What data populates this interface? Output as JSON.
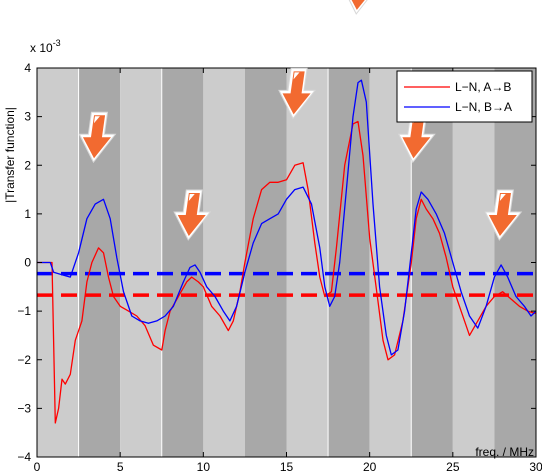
{
  "chart_data": {
    "type": "line",
    "title": "",
    "xlabel": "freq. / MHz",
    "ylabel": "|Transfer function|",
    "y_exponent_label": "x 10",
    "y_exponent_sup": "-3",
    "xlim": [
      0,
      30
    ],
    "ylim": [
      -4,
      4
    ],
    "xticks": [
      0,
      5,
      10,
      15,
      20,
      25,
      30
    ],
    "yticks": [
      -4,
      -3,
      -2,
      -1,
      0,
      1,
      2,
      3,
      4
    ],
    "legend_position": "top-right",
    "grid": false,
    "background_bands": [
      {
        "x0": 0,
        "x1": 2.5,
        "shade": "light"
      },
      {
        "x0": 2.5,
        "x1": 5,
        "shade": "dark"
      },
      {
        "x0": 5,
        "x1": 7.5,
        "shade": "light"
      },
      {
        "x0": 7.5,
        "x1": 10,
        "shade": "dark"
      },
      {
        "x0": 10,
        "x1": 12.5,
        "shade": "light"
      },
      {
        "x0": 12.5,
        "x1": 15,
        "shade": "dark"
      },
      {
        "x0": 15,
        "x1": 17.5,
        "shade": "light"
      },
      {
        "x0": 17.5,
        "x1": 20,
        "shade": "dark"
      },
      {
        "x0": 20,
        "x1": 22.5,
        "shade": "light"
      },
      {
        "x0": 22.5,
        "x1": 25,
        "shade": "dark"
      },
      {
        "x0": 25,
        "x1": 27.5,
        "shade": "light"
      },
      {
        "x0": 27.5,
        "x1": 30,
        "shade": "dark"
      }
    ],
    "band_separators": [
      2.5,
      7.5,
      17.5,
      22.5
    ],
    "colors": {
      "light_band": "#cccccc",
      "dark_band": "#a8a8a8",
      "separator": "#ffffff",
      "arrow_fill": "#f26a30",
      "arrow_highlight": "#ffffff"
    },
    "series": [
      {
        "name": "L−N, A→B",
        "color": "#ff0000",
        "points": [
          [
            0,
            0
          ],
          [
            0.9,
            0
          ],
          [
            1.0,
            -1.6
          ],
          [
            1.1,
            -3.3
          ],
          [
            1.3,
            -3.0
          ],
          [
            1.5,
            -2.4
          ],
          [
            1.7,
            -2.5
          ],
          [
            2.0,
            -2.3
          ],
          [
            2.3,
            -1.6
          ],
          [
            2.7,
            -1.2
          ],
          [
            3.0,
            -0.4
          ],
          [
            3.3,
            0.0
          ],
          [
            3.7,
            0.3
          ],
          [
            4.0,
            0.2
          ],
          [
            4.3,
            -0.3
          ],
          [
            4.6,
            -0.7
          ],
          [
            5.0,
            -0.9
          ],
          [
            5.5,
            -1.0
          ],
          [
            6.0,
            -1.1
          ],
          [
            6.5,
            -1.3
          ],
          [
            7.0,
            -1.7
          ],
          [
            7.5,
            -1.8
          ],
          [
            7.7,
            -1.4
          ],
          [
            8.0,
            -1.0
          ],
          [
            8.5,
            -0.7
          ],
          [
            9.0,
            -0.4
          ],
          [
            9.3,
            -0.3
          ],
          [
            9.7,
            -0.4
          ],
          [
            10.0,
            -0.5
          ],
          [
            10.5,
            -0.9
          ],
          [
            11.0,
            -1.1
          ],
          [
            11.5,
            -1.4
          ],
          [
            11.8,
            -1.2
          ],
          [
            12.2,
            -0.6
          ],
          [
            12.5,
            0.0
          ],
          [
            13.0,
            0.9
          ],
          [
            13.5,
            1.5
          ],
          [
            14.0,
            1.65
          ],
          [
            14.5,
            1.65
          ],
          [
            15.0,
            1.7
          ],
          [
            15.5,
            2.0
          ],
          [
            16.0,
            2.05
          ],
          [
            16.3,
            1.5
          ],
          [
            16.7,
            0.4
          ],
          [
            17.0,
            -0.3
          ],
          [
            17.3,
            -0.7
          ],
          [
            17.7,
            -0.6
          ],
          [
            18.0,
            0.3
          ],
          [
            18.5,
            2.0
          ],
          [
            19.0,
            2.85
          ],
          [
            19.3,
            2.9
          ],
          [
            19.6,
            2.2
          ],
          [
            20.0,
            0.5
          ],
          [
            20.5,
            -0.8
          ],
          [
            20.8,
            -1.6
          ],
          [
            21.1,
            -2.0
          ],
          [
            21.5,
            -1.9
          ],
          [
            22.0,
            -1.2
          ],
          [
            22.5,
            0.0
          ],
          [
            22.8,
            0.9
          ],
          [
            23.1,
            1.3
          ],
          [
            23.4,
            1.1
          ],
          [
            23.8,
            0.9
          ],
          [
            24.2,
            0.6
          ],
          [
            24.6,
            0.1
          ],
          [
            25.0,
            -0.5
          ],
          [
            25.5,
            -1.0
          ],
          [
            26.0,
            -1.5
          ],
          [
            26.5,
            -1.2
          ],
          [
            27.0,
            -0.9
          ],
          [
            27.5,
            -0.7
          ],
          [
            28.0,
            -0.6
          ],
          [
            28.5,
            -0.75
          ],
          [
            29.0,
            -0.9
          ],
          [
            29.5,
            -1.0
          ],
          [
            30.0,
            -1.05
          ]
        ]
      },
      {
        "name": "L−N, B→A",
        "color": "#0000ff",
        "points": [
          [
            0,
            0
          ],
          [
            0.8,
            0
          ],
          [
            1.0,
            -0.2
          ],
          [
            1.5,
            -0.25
          ],
          [
            2.0,
            -0.3
          ],
          [
            2.5,
            0.2
          ],
          [
            3.0,
            0.9
          ],
          [
            3.5,
            1.2
          ],
          [
            4.0,
            1.3
          ],
          [
            4.4,
            0.9
          ],
          [
            4.8,
            0.1
          ],
          [
            5.2,
            -0.6
          ],
          [
            5.7,
            -1.1
          ],
          [
            6.2,
            -1.2
          ],
          [
            6.7,
            -1.25
          ],
          [
            7.2,
            -1.2
          ],
          [
            7.7,
            -1.1
          ],
          [
            8.2,
            -0.9
          ],
          [
            8.8,
            -0.4
          ],
          [
            9.2,
            -0.1
          ],
          [
            9.5,
            -0.05
          ],
          [
            9.8,
            -0.2
          ],
          [
            10.2,
            -0.5
          ],
          [
            10.7,
            -0.7
          ],
          [
            11.2,
            -1.0
          ],
          [
            11.6,
            -1.2
          ],
          [
            12.0,
            -0.9
          ],
          [
            12.5,
            -0.2
          ],
          [
            13.0,
            0.4
          ],
          [
            13.5,
            0.8
          ],
          [
            14.0,
            0.9
          ],
          [
            14.5,
            1.0
          ],
          [
            15.0,
            1.3
          ],
          [
            15.5,
            1.5
          ],
          [
            16.0,
            1.55
          ],
          [
            16.5,
            1.2
          ],
          [
            17.0,
            0.3
          ],
          [
            17.3,
            -0.5
          ],
          [
            17.6,
            -0.9
          ],
          [
            17.9,
            -0.7
          ],
          [
            18.2,
            0.0
          ],
          [
            18.6,
            1.5
          ],
          [
            19.0,
            3.0
          ],
          [
            19.3,
            3.7
          ],
          [
            19.5,
            3.75
          ],
          [
            19.8,
            3.3
          ],
          [
            20.2,
            1.2
          ],
          [
            20.6,
            -0.5
          ],
          [
            21.0,
            -1.5
          ],
          [
            21.3,
            -1.9
          ],
          [
            21.7,
            -1.8
          ],
          [
            22.1,
            -1.0
          ],
          [
            22.5,
            0.2
          ],
          [
            22.8,
            1.1
          ],
          [
            23.1,
            1.45
          ],
          [
            23.5,
            1.3
          ],
          [
            24.0,
            1.0
          ],
          [
            24.5,
            0.6
          ],
          [
            25.0,
            0.0
          ],
          [
            25.5,
            -0.6
          ],
          [
            26.0,
            -1.1
          ],
          [
            26.5,
            -1.35
          ],
          [
            27.0,
            -0.9
          ],
          [
            27.5,
            -0.3
          ],
          [
            27.9,
            -0.05
          ],
          [
            28.3,
            -0.3
          ],
          [
            28.8,
            -0.7
          ],
          [
            29.3,
            -0.9
          ],
          [
            29.7,
            -1.1
          ],
          [
            30.0,
            -1.0
          ]
        ]
      }
    ],
    "reference_lines": [
      {
        "y": -0.23,
        "color": "#0000ff",
        "style": "dashed"
      },
      {
        "y": -0.67,
        "color": "#ff0000",
        "style": "dashed"
      }
    ],
    "arrow_markers": [
      {
        "x": 3.8,
        "y_top": 3.05
      },
      {
        "x": 9.5,
        "y_top": 1.45
      },
      {
        "x": 15.8,
        "y_top": 3.95
      },
      {
        "x": 19.6,
        "y_top": 6.1
      },
      {
        "x": 23.0,
        "y_top": 3.05
      },
      {
        "x": 28.2,
        "y_top": 1.45
      }
    ]
  }
}
